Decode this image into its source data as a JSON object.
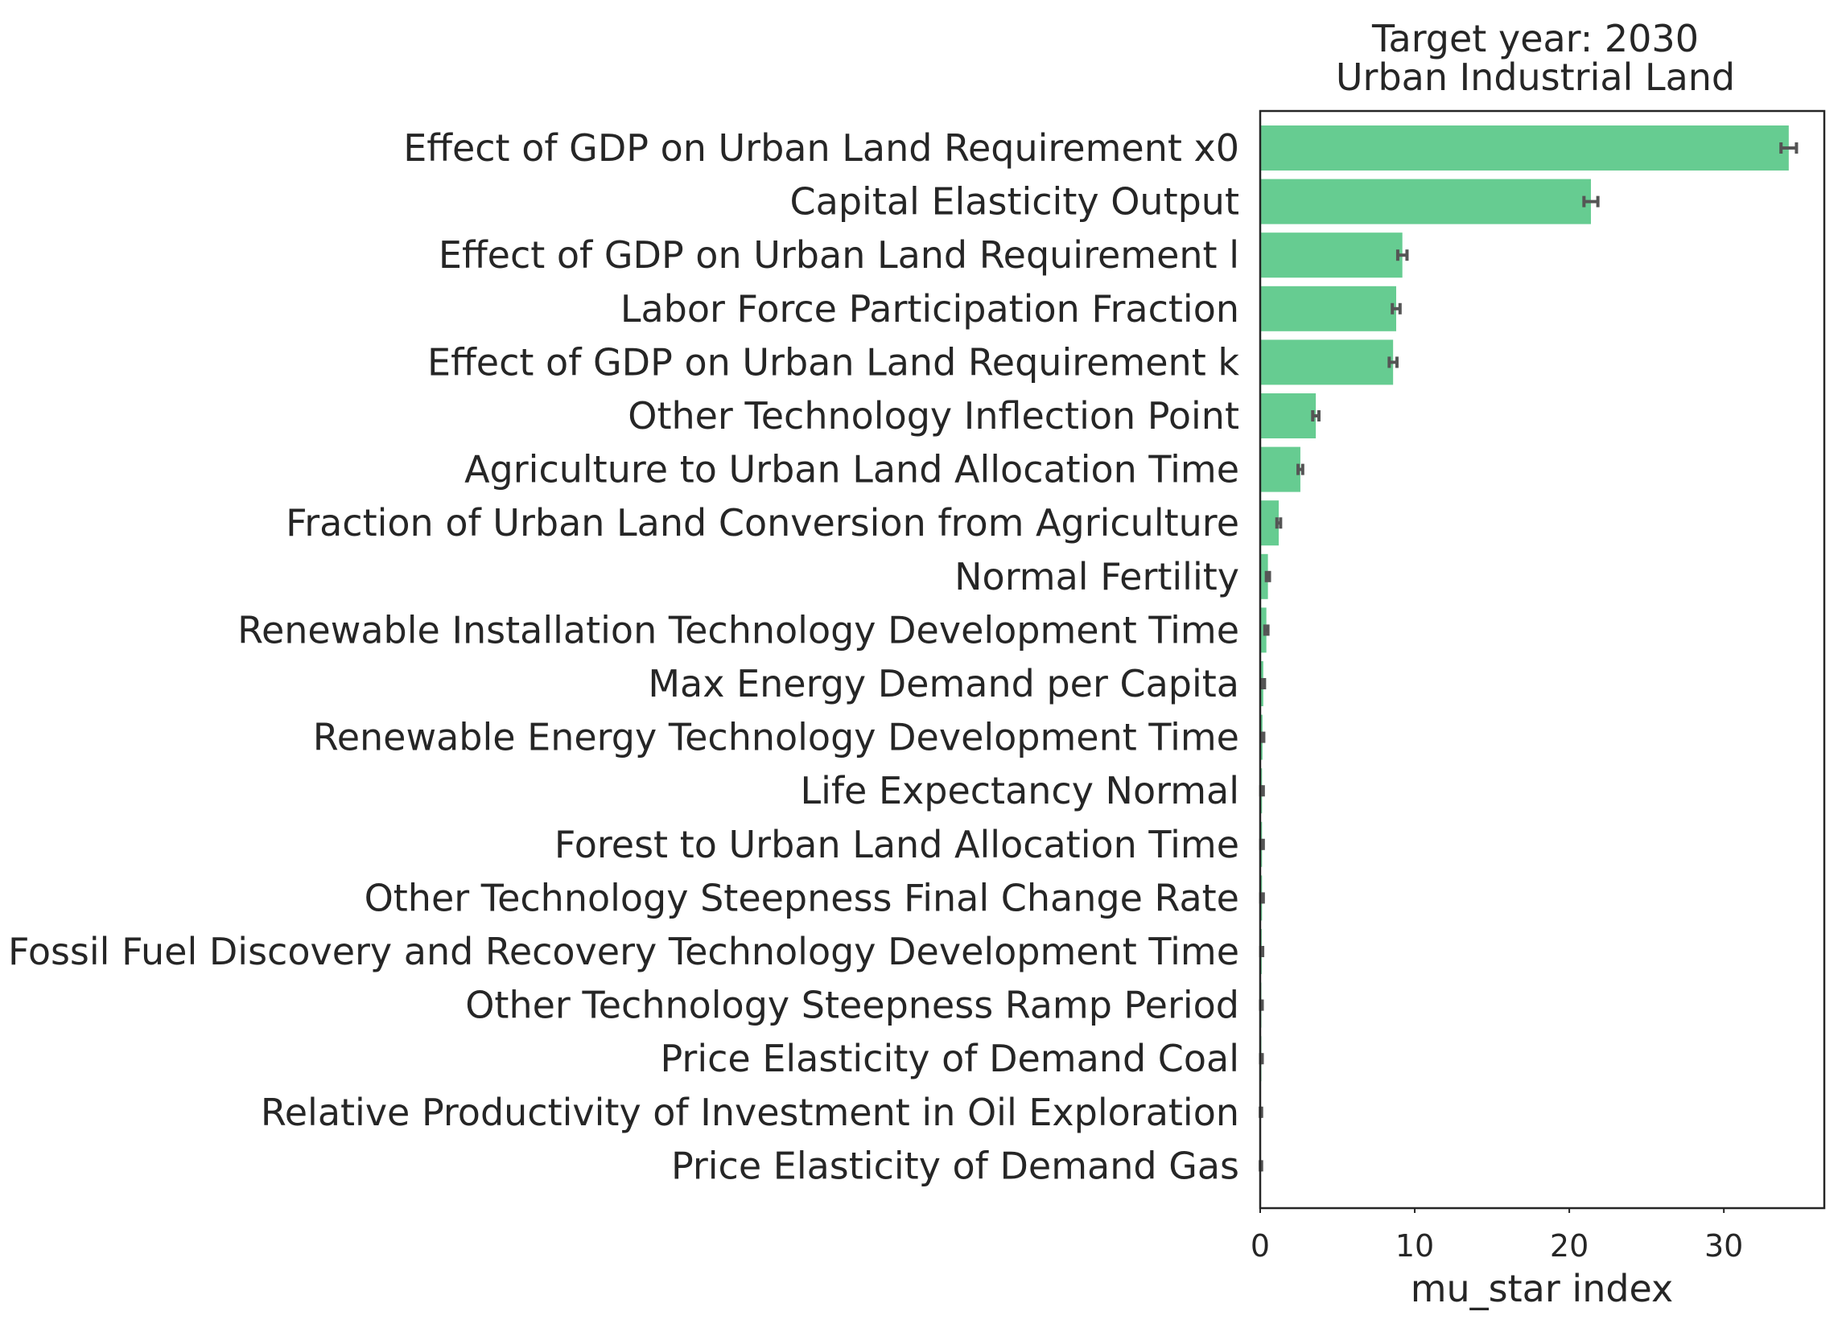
{
  "chart_data": {
    "type": "bar",
    "orientation": "horizontal",
    "title_lines": [
      "Target year: 2030",
      "Urban Industrial Land"
    ],
    "xlabel": "mu_star index",
    "ylabel": "",
    "xlim": [
      0,
      36.5
    ],
    "xticks": [
      0,
      10,
      20,
      30
    ],
    "grid": false,
    "bar_color": "#66cc91",
    "error_color": "#555555",
    "axes_color": "#262626",
    "categories": [
      "Effect of GDP on Urban Land Requirement x0",
      "Capital Elasticity Output",
      "Effect of GDP on Urban Land Requirement l",
      "Labor Force Participation Fraction",
      "Effect of GDP on Urban Land Requirement k",
      "Other Technology Inflection Point",
      "Agriculture to Urban Land Allocation Time",
      "Fraction of Urban Land Conversion from Agriculture",
      "Normal Fertility",
      "Renewable Installation Technology Development Time",
      "Max Energy Demand per Capita",
      "Renewable Energy Technology Development Time",
      "Life Expectancy Normal",
      "Forest to Urban Land Allocation Time",
      "Other Technology Steepness Final Change Rate",
      "Fossil Fuel Discovery and Recovery Technology Development Time",
      "Other Technology Steepness Ramp Period",
      "Price Elasticity of Demand Coal",
      "Relative Productivity of Investment in Oil Exploration",
      "Price Elasticity of Demand Gas"
    ],
    "values": [
      34.2,
      21.4,
      9.2,
      8.8,
      8.6,
      3.6,
      2.6,
      1.2,
      0.5,
      0.4,
      0.2,
      0.15,
      0.12,
      0.12,
      0.12,
      0.1,
      0.08,
      0.08,
      0.05,
      0.05
    ],
    "errors": [
      0.5,
      0.45,
      0.3,
      0.25,
      0.25,
      0.2,
      0.15,
      0.12,
      0.1,
      0.1,
      0.08,
      0.08,
      0.08,
      0.08,
      0.08,
      0.06,
      0.05,
      0.05,
      0.04,
      0.04
    ]
  }
}
